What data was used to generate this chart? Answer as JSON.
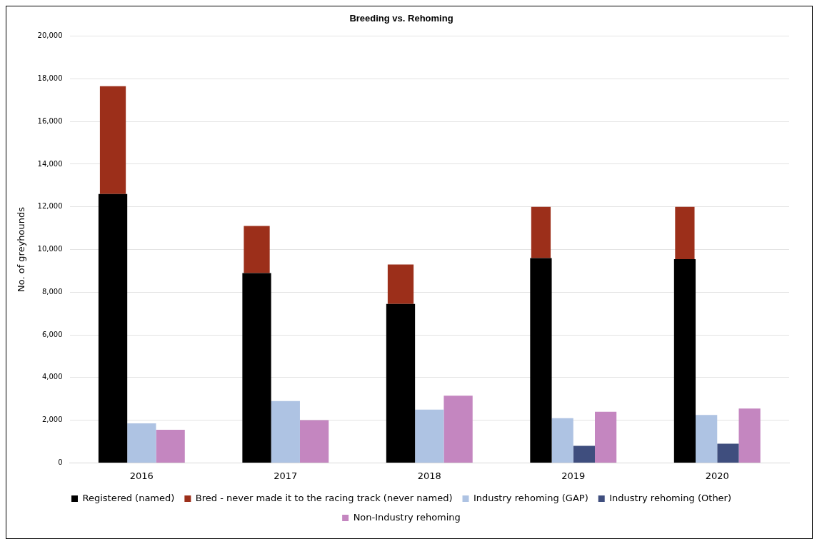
{
  "chart_data": {
    "type": "bar",
    "title": "Breeding vs. Rehoming",
    "ylabel": "No. of greyhounds",
    "categories": [
      "2016",
      "2017",
      "2018",
      "2019",
      "2020"
    ],
    "series": [
      {
        "name": "Registered (named)",
        "color": "#000000",
        "values": [
          12600,
          8900,
          7450,
          9600,
          9550
        ]
      },
      {
        "name": "Bred - never made it to the racing track (never named)",
        "color": "#9c2f1a",
        "base": [
          12600,
          8900,
          7450,
          9600,
          9550
        ],
        "values": [
          5050,
          2200,
          1850,
          2400,
          2450
        ]
      },
      {
        "name": "Industry rehoming (GAP)",
        "color": "#aec3e3",
        "values": [
          1850,
          2900,
          2500,
          2100,
          2250
        ]
      },
      {
        "name": "Industry rehoming (Other)",
        "color": "#3f4e7e",
        "values": [
          null,
          null,
          null,
          800,
          900
        ]
      },
      {
        "name": "Non-Industry rehoming",
        "color": "#c486c0",
        "values": [
          1550,
          2000,
          3150,
          2400,
          2550
        ]
      }
    ],
    "ylim": [
      0,
      20000
    ],
    "yticks": [
      0,
      {
        "value": 2000,
        "label": "2,000"
      },
      {
        "value": 4000,
        "label": "4,000"
      },
      {
        "value": 6000,
        "label": "6,000"
      },
      {
        "value": 8000,
        "label": "8,000"
      },
      {
        "value": 10000,
        "label": "10,000"
      },
      {
        "value": 12000,
        "label": "12,000"
      },
      {
        "value": 14000,
        "label": "14,000"
      },
      {
        "value": 16000,
        "label": "16,000"
      },
      {
        "value": 18000,
        "label": "18,000"
      },
      {
        "value": 20000,
        "label": "20,000"
      }
    ],
    "grid": "y",
    "legend": "bottom"
  }
}
